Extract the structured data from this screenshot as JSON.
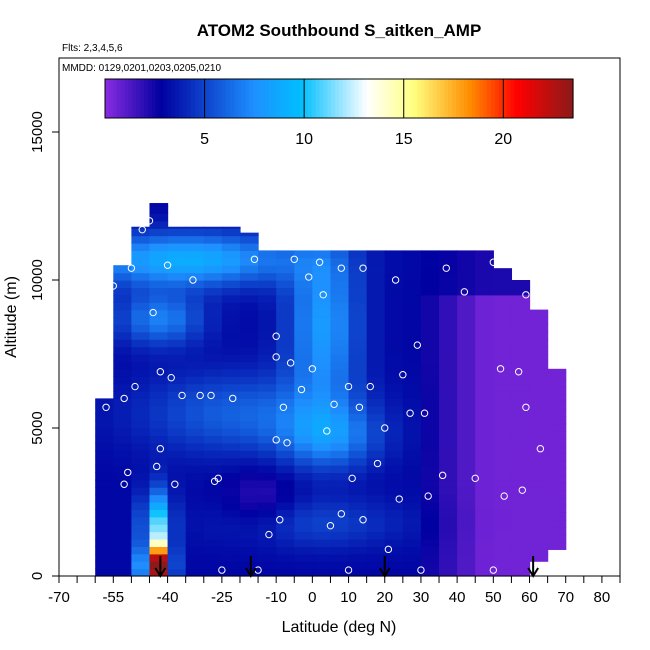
{
  "chart_data": {
    "type": "heatmap",
    "title": "ATOM2 Southbound S_aitken_AMP",
    "flights_note": "Flts: 2,3,4,5,6",
    "dates_note": "MMDD: 0129,0201,0203,0205,0210",
    "xlabel": "Latitude (deg N)",
    "ylabel": "Altitude (m)",
    "xlim": [
      -70,
      85
    ],
    "ylim": [
      0,
      17500
    ],
    "x_ticks": [
      -70,
      -55,
      -40,
      -25,
      -10,
      0,
      10,
      20,
      30,
      40,
      50,
      60,
      70,
      80
    ],
    "y_ticks": [
      0,
      5000,
      10000,
      15000
    ],
    "colorbar": {
      "range": [
        0,
        23.5
      ],
      "ticks": [
        5,
        10,
        15,
        20
      ],
      "colors": [
        "#8a2be2",
        "#0000a0",
        "#1e90ff",
        "#00bfff",
        "#ffffff",
        "#ffff80",
        "#ff8c00",
        "#ff0000",
        "#8b1a1a"
      ]
    },
    "field": {
      "columns_lat": [
        -57.5,
        -52.5,
        -47.5,
        -42.5,
        -37.5,
        -32.5,
        -27.5,
        -22.5,
        -17.5,
        -12.5,
        -7.5,
        -2.5,
        2.5,
        7.5,
        12.5,
        17.5,
        22.5,
        27.5,
        32.5,
        37.5,
        42.5,
        47.5,
        52.5,
        57.5,
        62.5,
        67.5
      ],
      "rows_alt": [
        250,
        750,
        1250,
        1750,
        2250,
        2750,
        3250,
        3750,
        4250,
        4750,
        5250,
        5750,
        6250,
        6750,
        7250,
        7750,
        8250,
        8750,
        9250,
        9750,
        10250,
        10750,
        11250,
        11750,
        12250
      ],
      "top_alt": [
        6000,
        10500,
        11800,
        12600,
        11800,
        11800,
        11800,
        11800,
        11600,
        11000,
        11000,
        11000,
        11000,
        11000,
        11000,
        11000,
        11000,
        11000,
        11000,
        11000,
        11000,
        11000,
        10400,
        10000,
        9000,
        7000
      ],
      "bottom_alt": [
        0,
        0,
        0,
        0,
        0,
        0,
        0,
        0,
        0,
        0,
        0,
        0,
        0,
        0,
        0,
        0,
        0,
        0,
        0,
        0,
        0,
        0,
        0,
        0,
        500,
        900
      ]
    },
    "sample_points": [
      {
        "lat": -57,
        "alt": 5700
      },
      {
        "lat": -55,
        "alt": 9800
      },
      {
        "lat": -52,
        "alt": 6000
      },
      {
        "lat": -52,
        "alt": 3100
      },
      {
        "lat": -51,
        "alt": 3500
      },
      {
        "lat": -50,
        "alt": 10400
      },
      {
        "lat": -49,
        "alt": 6400
      },
      {
        "lat": -47,
        "alt": 11700
      },
      {
        "lat": -45,
        "alt": 12000
      },
      {
        "lat": -44,
        "alt": 8900
      },
      {
        "lat": -43,
        "alt": 3700
      },
      {
        "lat": -42,
        "alt": 6900
      },
      {
        "lat": -42,
        "alt": 4300
      },
      {
        "lat": -40,
        "alt": 10500
      },
      {
        "lat": -39,
        "alt": 6700
      },
      {
        "lat": -38,
        "alt": 3100
      },
      {
        "lat": -36,
        "alt": 6100
      },
      {
        "lat": -33,
        "alt": 10000
      },
      {
        "lat": -31,
        "alt": 6100
      },
      {
        "lat": -28,
        "alt": 6100
      },
      {
        "lat": -27,
        "alt": 3200
      },
      {
        "lat": -26,
        "alt": 3300
      },
      {
        "lat": -22,
        "alt": 6000
      },
      {
        "lat": -16,
        "alt": 10700
      },
      {
        "lat": -10,
        "alt": 8100
      },
      {
        "lat": -10,
        "alt": 7400
      },
      {
        "lat": -10,
        "alt": 4600
      },
      {
        "lat": -9,
        "alt": 1900
      },
      {
        "lat": -8,
        "alt": 5700
      },
      {
        "lat": -7,
        "alt": 4500
      },
      {
        "lat": -6,
        "alt": 7200
      },
      {
        "lat": -5,
        "alt": 10700
      },
      {
        "lat": -3,
        "alt": 6300
      },
      {
        "lat": -1,
        "alt": 10100
      },
      {
        "lat": 0,
        "alt": 7000
      },
      {
        "lat": 2,
        "alt": 10600
      },
      {
        "lat": 3,
        "alt": 9500
      },
      {
        "lat": 4,
        "alt": 4900
      },
      {
        "lat": 5,
        "alt": 1700
      },
      {
        "lat": 6,
        "alt": 5800
      },
      {
        "lat": 8,
        "alt": 10400
      },
      {
        "lat": 10,
        "alt": 6400
      },
      {
        "lat": 11,
        "alt": 3300
      },
      {
        "lat": 13,
        "alt": 5700
      },
      {
        "lat": 14,
        "alt": 10400
      },
      {
        "lat": 16,
        "alt": 6400
      },
      {
        "lat": 18,
        "alt": 3800
      },
      {
        "lat": 20,
        "alt": 5000
      },
      {
        "lat": 21,
        "alt": 900
      },
      {
        "lat": 23,
        "alt": 10000
      },
      {
        "lat": 25,
        "alt": 6800
      },
      {
        "lat": 27,
        "alt": 5500
      },
      {
        "lat": 29,
        "alt": 7800
      },
      {
        "lat": 31,
        "alt": 5500
      },
      {
        "lat": 32,
        "alt": 2700
      },
      {
        "lat": 36,
        "alt": 3400
      },
      {
        "lat": 37,
        "alt": 10400
      },
      {
        "lat": 42,
        "alt": 9600
      },
      {
        "lat": 45,
        "alt": 3300
      },
      {
        "lat": 50,
        "alt": 10600
      },
      {
        "lat": 52,
        "alt": 7000
      },
      {
        "lat": 53,
        "alt": 2700
      },
      {
        "lat": 57,
        "alt": 6900
      },
      {
        "lat": 59,
        "alt": 9500
      },
      {
        "lat": 59,
        "alt": 5700
      },
      {
        "lat": 58,
        "alt": 2900
      },
      {
        "lat": 63,
        "alt": 4300
      },
      {
        "lat": -25,
        "alt": 200
      },
      {
        "lat": -15,
        "alt": 200
      },
      {
        "lat": 10,
        "alt": 200
      },
      {
        "lat": 30,
        "alt": 200
      },
      {
        "lat": 50,
        "alt": 200
      },
      {
        "lat": 8,
        "alt": 2100
      },
      {
        "lat": 14,
        "alt": 1900
      },
      {
        "lat": -12,
        "alt": 1400
      },
      {
        "lat": 24,
        "alt": 2600
      }
    ],
    "arrows_lat": [
      -42,
      -17,
      20,
      61
    ]
  }
}
